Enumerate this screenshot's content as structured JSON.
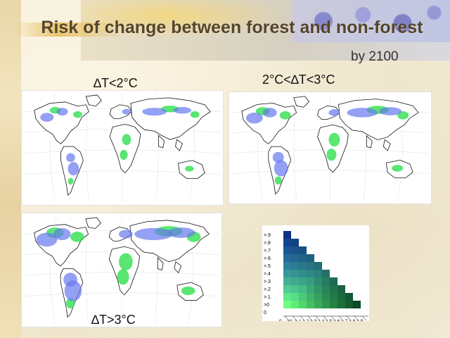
{
  "slide": {
    "title": "Risk of change between forest and non-forest",
    "subtitle": "by 2100"
  },
  "panels": [
    {
      "label": "∆T<2°C",
      "intensity": "low"
    },
    {
      "label": "2°C<∆T<3°C",
      "intensity": "medium"
    },
    {
      "label": "∆T>3°C",
      "intensity": "high"
    }
  ],
  "legend": {
    "y_labels": [
      "0",
      ">0",
      ">.1",
      ">.2",
      ">.3",
      ">.4",
      ">.5",
      ">.6",
      ">.7",
      ">.8",
      ">.9"
    ],
    "x_labels": [
      "0",
      ">0",
      ">.1",
      ">.2",
      ">.3",
      ">.4",
      ">.5",
      ">.6",
      ">.7",
      ">.8",
      ">.9"
    ]
  },
  "colors": {
    "forest_gain": "#22dd44",
    "forest_loss": "#6677ee",
    "title_text": "#55452a",
    "coastline": "#111111",
    "gridline": "#bbbbbb"
  }
}
